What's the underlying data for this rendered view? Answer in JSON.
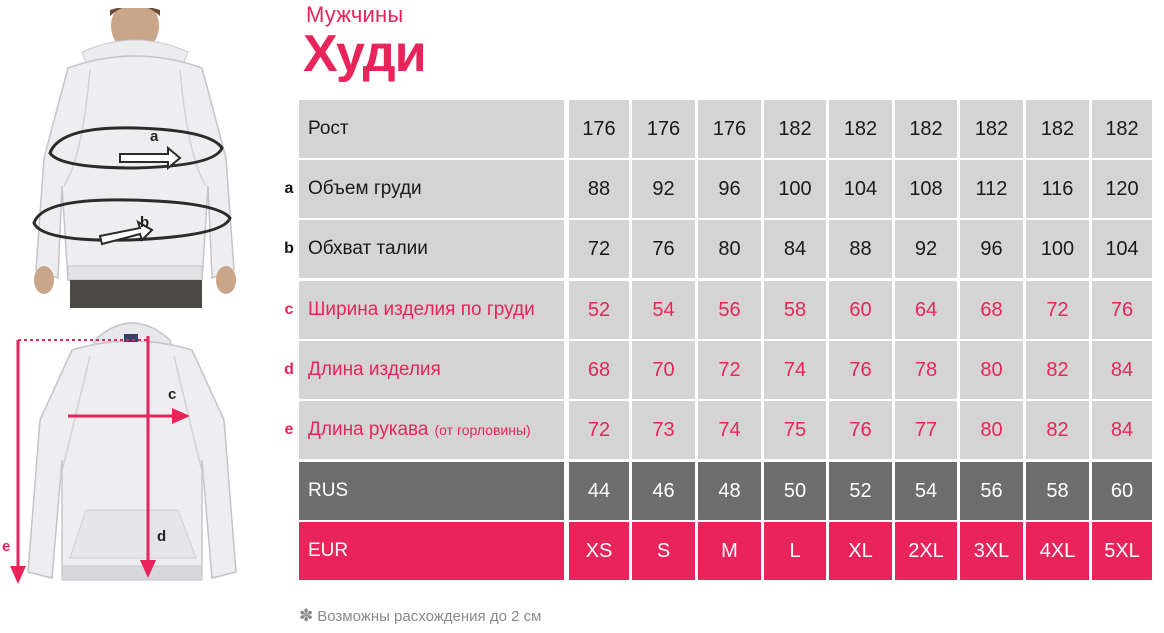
{
  "header": {
    "subtitle": "Мужчины",
    "title": "Худи"
  },
  "figures": {
    "top_labels": [
      "a",
      "b"
    ],
    "bottom_labels": [
      "c",
      "d",
      "e"
    ]
  },
  "table": {
    "rows": [
      {
        "letter": "",
        "label": "Рост",
        "note": "",
        "style": "plain",
        "values": [
          "176",
          "176",
          "176",
          "182",
          "182",
          "182",
          "182",
          "182",
          "182"
        ]
      },
      {
        "letter": "a",
        "label": "Объем груди",
        "note": "",
        "style": "dark",
        "values": [
          "88",
          "92",
          "96",
          "100",
          "104",
          "108",
          "112",
          "116",
          "120"
        ]
      },
      {
        "letter": "b",
        "label": "Обхват талии",
        "note": "",
        "style": "dark",
        "values": [
          "72",
          "76",
          "80",
          "84",
          "88",
          "92",
          "96",
          "100",
          "104"
        ]
      },
      {
        "letter": "c",
        "label": "Ширина изделия по груди",
        "note": "",
        "style": "red",
        "values": [
          "52",
          "54",
          "56",
          "58",
          "60",
          "64",
          "68",
          "72",
          "76"
        ]
      },
      {
        "letter": "d",
        "label": "Длина изделия",
        "note": "",
        "style": "red",
        "values": [
          "68",
          "70",
          "72",
          "74",
          "76",
          "78",
          "80",
          "82",
          "84"
        ]
      },
      {
        "letter": "e",
        "label": "Длина рукава",
        "note": "(от горловины)",
        "style": "red",
        "values": [
          "72",
          "73",
          "74",
          "75",
          "76",
          "77",
          "80",
          "82",
          "84"
        ]
      },
      {
        "letter": "",
        "label": "RUS",
        "note": "",
        "style": "rus",
        "values": [
          "44",
          "46",
          "48",
          "50",
          "52",
          "54",
          "56",
          "58",
          "60"
        ]
      },
      {
        "letter": "",
        "label": "EUR",
        "note": "",
        "style": "eur",
        "values": [
          "XS",
          "S",
          "M",
          "L",
          "XL",
          "2XL",
          "3XL",
          "4XL",
          "5XL"
        ]
      }
    ]
  },
  "footnote": {
    "icon": "asterisk-flower-icon",
    "text": "Возможны расхождения до 2 см"
  },
  "colors": {
    "accent": "#e8245a",
    "cell_grey": "#d4d4d4",
    "rus_grey": "#6d6d6d",
    "footnote_grey": "#8a8a8a"
  }
}
